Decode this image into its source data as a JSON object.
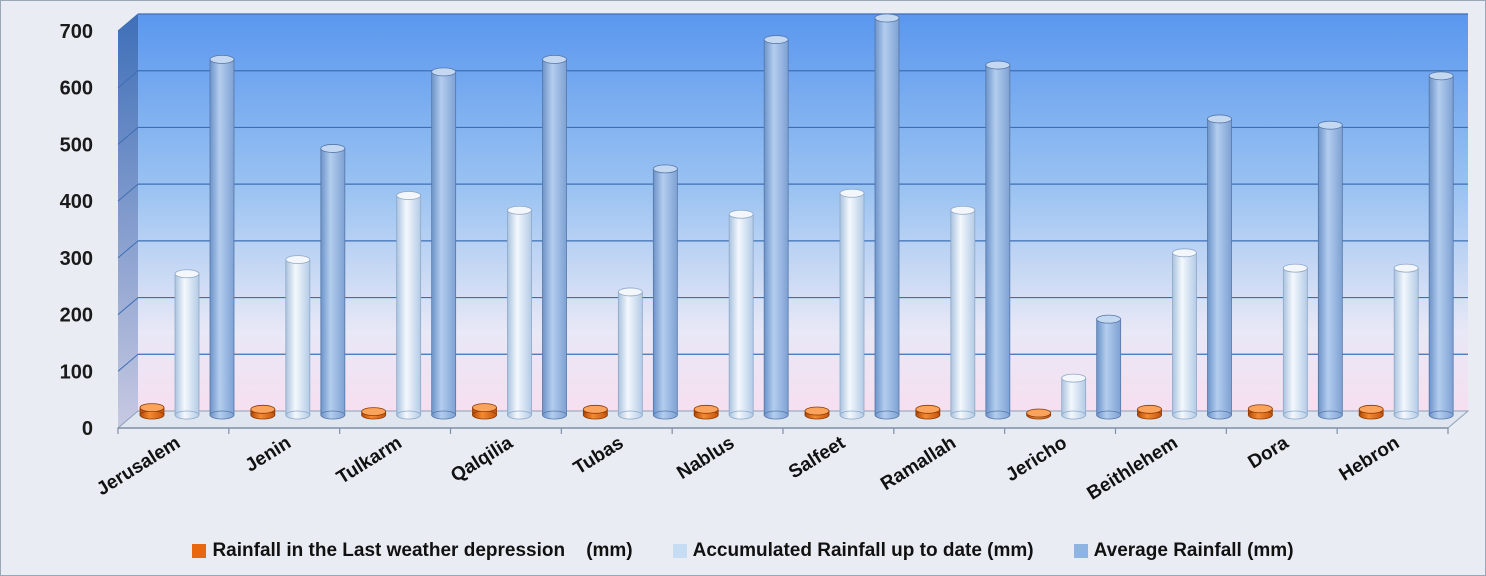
{
  "chart_data": {
    "type": "bar",
    "categories": [
      "Jerusalem",
      "Jenin",
      "Tulkarm",
      "Qalqilia",
      "Tubas",
      "Nablus",
      "Salfeet",
      "Ramallah",
      "Jericho",
      "Beithlehem",
      "Dora",
      "Hebron"
    ],
    "series": [
      {
        "name": "Rainfall in the Last weather depression    (mm)",
        "color": "#e8670f",
        "values": [
          13,
          10,
          6,
          13,
          10,
          10,
          7,
          10,
          3,
          10,
          11,
          10
        ]
      },
      {
        "name": "Accumulated Rainfall up to date (mm)",
        "color": "#c6dcf3",
        "values": [
          249,
          274,
          387,
          361,
          217,
          354,
          391,
          361,
          65,
          286,
          259,
          259
        ]
      },
      {
        "name": "Average Rainfall (mm)",
        "color": "#8eb4e3",
        "values": [
          627,
          470,
          605,
          627,
          434,
          662,
          700,
          617,
          169,
          522,
          511,
          598
        ]
      }
    ],
    "yticks": [
      0,
      100,
      200,
      300,
      400,
      500,
      600,
      700
    ],
    "ylim": [
      0,
      700
    ],
    "grid": true,
    "legend_position": "bottom"
  }
}
